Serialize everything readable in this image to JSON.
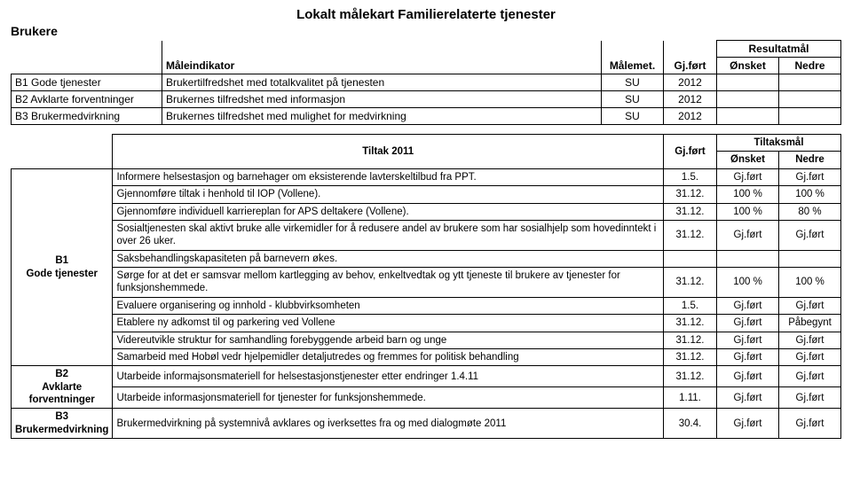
{
  "title": "Lokalt målekart Familierelaterte tjenester",
  "sectionLabel": "Brukere",
  "table1": {
    "headers": {
      "indikator": "Måleindikator",
      "malemet": "Målemet.",
      "gjfort": "Gj.ført",
      "resultatmal": "Resultatmål",
      "onsket": "Ønsket",
      "nedre": "Nedre"
    },
    "rows": [
      {
        "code": "B1 Gode tjenester",
        "text": "Brukertilfredshet med totalkvalitet på tjenesten",
        "m": "SU",
        "g": "2012"
      },
      {
        "code": "B2 Avklarte forventninger",
        "text": "Brukernes tilfredshet med informasjon",
        "m": "SU",
        "g": "2012"
      },
      {
        "code": "B3 Brukermedvirkning",
        "text": "Brukernes tilfredshet med mulighet for medvirkning",
        "m": "SU",
        "g": "2012"
      }
    ]
  },
  "table2": {
    "headers": {
      "tiltak": "Tiltak 2011",
      "gjfort": "Gj.ført",
      "tiltaksmal": "Tiltaksmål",
      "onsket": "Ønsket",
      "nedre": "Nedre"
    },
    "groups": [
      {
        "label": "B1\nGode tjenester",
        "rows": [
          {
            "t": "Informere helsestasjon og barnehager om eksisterende lavterskeltilbud fra PPT.",
            "d": "1.5.",
            "o": "Gj.ført",
            "n": "Gj.ført"
          },
          {
            "t": "Gjennomføre tiltak i henhold til IOP (Vollene).",
            "d": "31.12.",
            "o": "100 %",
            "n": "100 %"
          },
          {
            "t": "Gjennomføre individuell karriereplan for APS deltakere (Vollene).",
            "d": "31.12.",
            "o": "100 %",
            "n": "80 %"
          },
          {
            "t": "Sosialtjenesten skal aktivt bruke alle virkemidler for å redusere andel av brukere som har sosialhjelp som hovedinntekt i over 26 uker.",
            "d": "31.12.",
            "o": "Gj.ført",
            "n": "Gj.ført"
          },
          {
            "t": "Saksbehandlingskapasiteten på barnevern økes.",
            "d": "",
            "o": "",
            "n": ""
          },
          {
            "t": "Sørge for at det er samsvar mellom kartlegging av behov, enkeltvedtak og ytt tjeneste til brukere av tjenester for funksjonshemmede.",
            "d": "31.12.",
            "o": "100 %",
            "n": "100 %"
          },
          {
            "t": "Evaluere organisering og innhold - klubbvirksomheten",
            "d": "1.5.",
            "o": "Gj.ført",
            "n": "Gj.ført"
          },
          {
            "t": "Etablere ny adkomst til og parkering ved Vollene",
            "d": "31.12.",
            "o": "Gj.ført",
            "n": "Påbegynt"
          },
          {
            "t": "Videreutvikle struktur for samhandling  forebyggende arbeid barn og unge",
            "d": "31.12.",
            "o": "Gj.ført",
            "n": "Gj.ført"
          },
          {
            "t": "Samarbeid med Hobøl vedr hjelpemidler detaljutredes og fremmes for politisk behandling",
            "d": "31.12.",
            "o": "Gj.ført",
            "n": "Gj.ført"
          }
        ]
      },
      {
        "label": "B2\nAvklarte\nforventninger",
        "rows": [
          {
            "t": "Utarbeide informajsonsmateriell for helsestasjonstjenester etter endringer 1.4.11",
            "d": "31.12.",
            "o": "Gj.ført",
            "n": "Gj.ført"
          },
          {
            "t": "Utarbeide informasjonsmateriell for tjenester for funksjonshemmede.",
            "d": "1.11.",
            "o": "Gj.ført",
            "n": "Gj.ført"
          }
        ]
      },
      {
        "label": "B3\nBrukermedvirkning",
        "rows": [
          {
            "t": "Brukermedvirkning på systemnivå avklares og iverksettes fra og med dialogmøte 2011",
            "d": "30.4.",
            "o": "Gj.ført",
            "n": "Gj.ført"
          }
        ]
      }
    ]
  }
}
